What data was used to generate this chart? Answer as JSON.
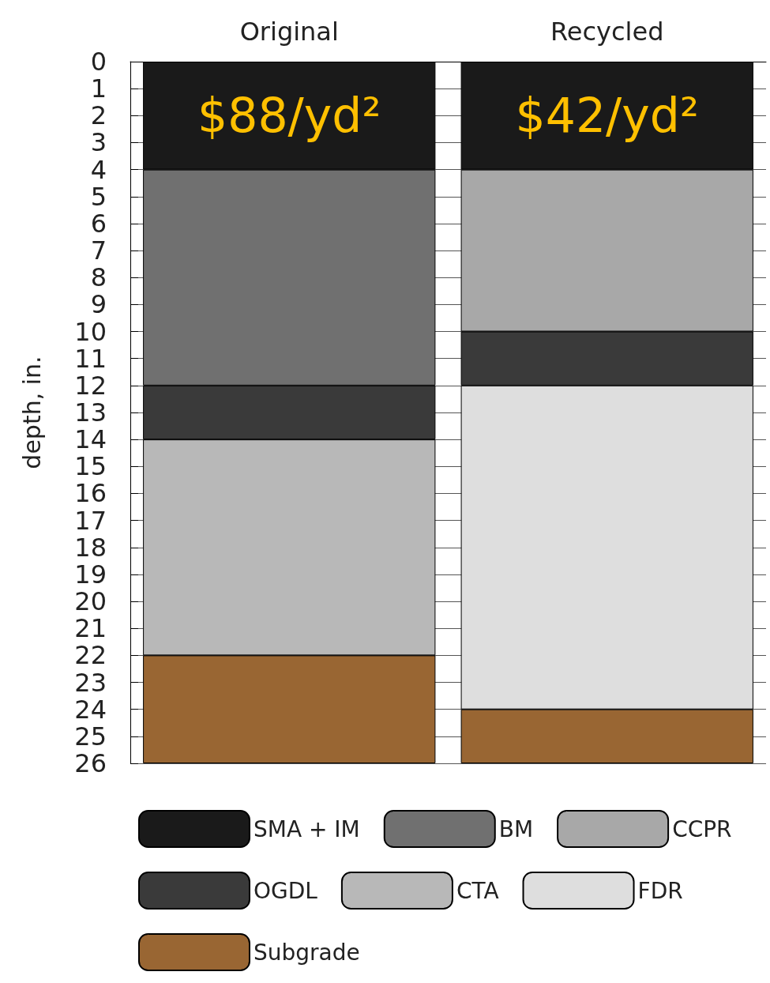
{
  "chart_data": {
    "type": "bar",
    "stacked": true,
    "ylabel": "depth, in.",
    "categories": [
      "Original",
      "Recycled"
    ],
    "series": [
      {
        "name": "SMA + IM",
        "color": "#1a1a1a",
        "values": [
          4,
          4
        ]
      },
      {
        "name": "BM",
        "color": "#707070",
        "values": [
          8,
          null
        ]
      },
      {
        "name": "CCPR",
        "color": "#a8a8a8",
        "values": [
          null,
          6
        ]
      },
      {
        "name": "OGDL",
        "color": "#3a3a3a",
        "values": [
          2,
          2
        ]
      },
      {
        "name": "CTA",
        "color": "#b8b8b8",
        "values": [
          8,
          null
        ]
      },
      {
        "name": "FDR",
        "color": "#dedede",
        "values": [
          null,
          12
        ]
      },
      {
        "name": "Subgrade",
        "color": "#996633",
        "values": [
          4,
          2
        ]
      }
    ],
    "ylim": [
      26,
      0
    ],
    "yticks": [
      0,
      1,
      2,
      3,
      4,
      5,
      6,
      7,
      8,
      9,
      10,
      11,
      12,
      13,
      14,
      15,
      16,
      17,
      18,
      19,
      20,
      21,
      22,
      23,
      24,
      25,
      26
    ],
    "grid": "y",
    "legend": "bottom",
    "annotations": [
      "$88/yd²",
      "$42/yd²"
    ]
  }
}
